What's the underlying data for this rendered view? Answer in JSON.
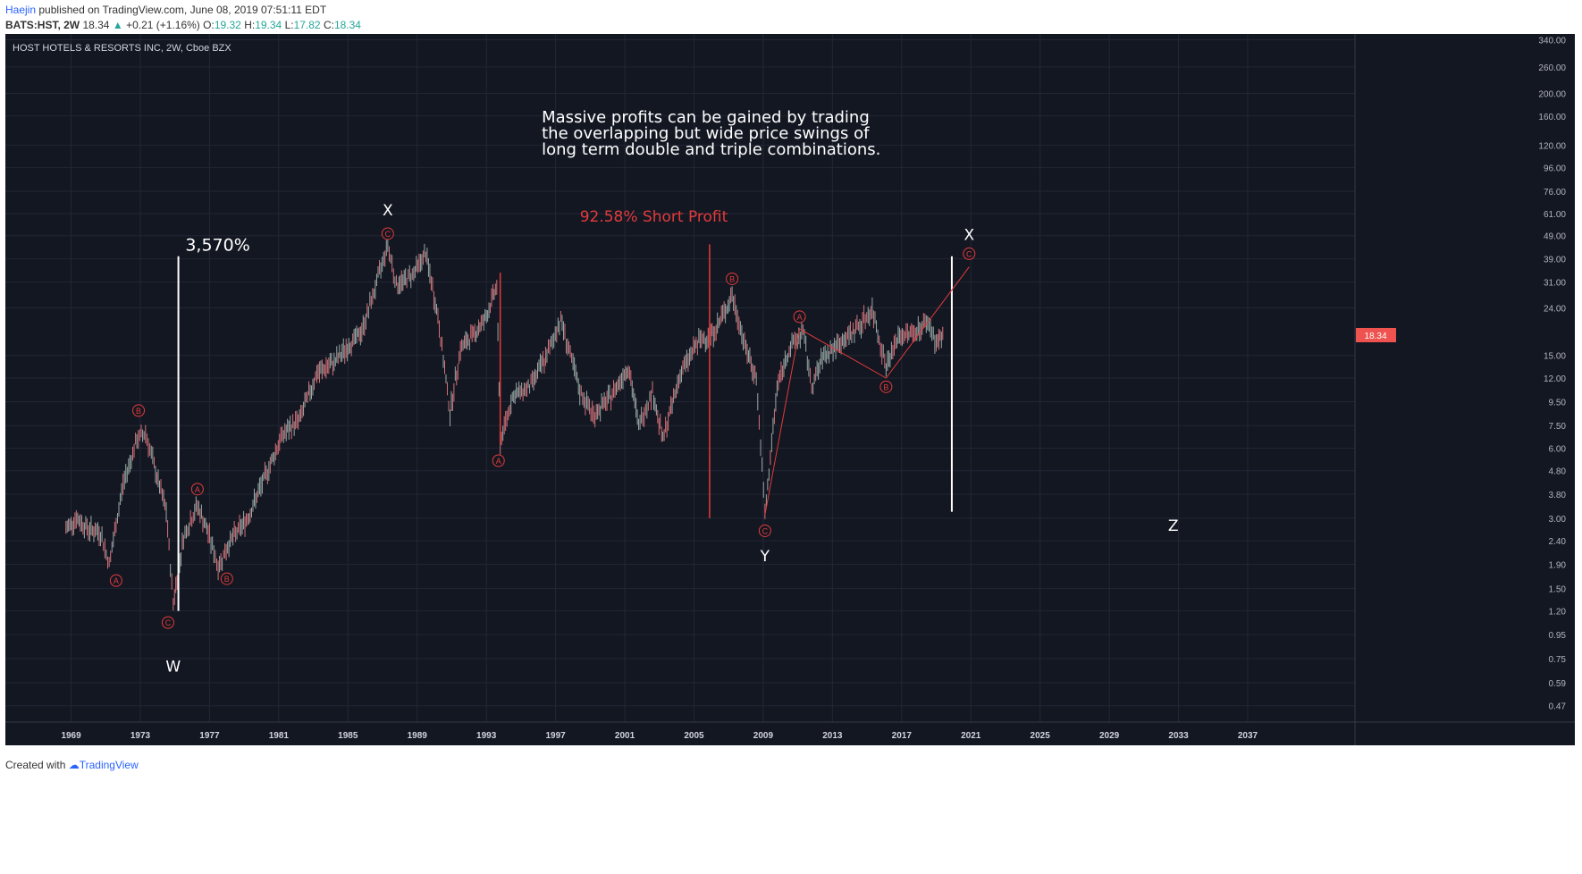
{
  "header": {
    "user": "Haejin",
    "published": "published on TradingView.com, June 08, 2019 07:51:11 EDT",
    "symbol": "BATS:HST, 2W",
    "price": "18.34",
    "change_arrow": "▲",
    "change": "+0.21 (+1.16%)",
    "o_label": "O:",
    "o": "19.32",
    "h_label": "H:",
    "h": "19.34",
    "l_label": "L:",
    "l": "17.82",
    "c_label": "C:",
    "c": "18.34"
  },
  "footer": {
    "created": "Created with",
    "brand": "TradingView"
  },
  "colors": {
    "background": "#131722",
    "grid": "#232735",
    "candle_up": "#9aa9a6",
    "candle_down": "#d4727a",
    "accent_red": "#e23b3b",
    "white": "#ffffff"
  },
  "chart_data": {
    "type": "candlestick",
    "title": "HOST HOTELS & RESORTS INC, 2W, Cboe BZX",
    "y_scale": "log",
    "ylim": [
      0.4,
      360
    ],
    "xlim": [
      1965.2,
      2043.2
    ],
    "x_ticks": [
      "1969",
      "1973",
      "1977",
      "1981",
      "1985",
      "1989",
      "1993",
      "1997",
      "2001",
      "2005",
      "2009",
      "2013",
      "2017",
      "2021",
      "2025",
      "2029",
      "2033",
      "2037"
    ],
    "y_ticks": [
      "340.00",
      "260.00",
      "200.00",
      "160.00",
      "120.00",
      "96.00",
      "76.00",
      "61.00",
      "49.00",
      "39.00",
      "31.00",
      "24.00",
      "15.00",
      "12.00",
      "9.50",
      "7.50",
      "6.00",
      "4.80",
      "3.80",
      "3.00",
      "2.40",
      "1.90",
      "1.50",
      "1.20",
      "0.95",
      "0.75",
      "0.59",
      "0.47"
    ],
    "last_price_label": "18.34",
    "last_price": 18.34,
    "price_path": [
      [
        1968.7,
        2.7
      ],
      [
        1969.3,
        3.0
      ],
      [
        1970.0,
        2.7
      ],
      [
        1970.7,
        2.6
      ],
      [
        1971.2,
        1.9
      ],
      [
        1972.0,
        4.2
      ],
      [
        1972.8,
        6.5
      ],
      [
        1973.3,
        7.0
      ],
      [
        1973.8,
        5.0
      ],
      [
        1974.5,
        3.2
      ],
      [
        1974.9,
        1.3
      ],
      [
        1975.5,
        2.5
      ],
      [
        1976.3,
        3.4
      ],
      [
        1977.0,
        2.5
      ],
      [
        1977.5,
        1.85
      ],
      [
        1978.2,
        2.4
      ],
      [
        1979.2,
        3.0
      ],
      [
        1980.2,
        4.5
      ],
      [
        1981.2,
        6.8
      ],
      [
        1982.2,
        8.0
      ],
      [
        1983.2,
        12.5
      ],
      [
        1984.2,
        14.0
      ],
      [
        1985.2,
        17.0
      ],
      [
        1985.8,
        19.0
      ],
      [
        1986.5,
        28.0
      ],
      [
        1987.3,
        45.0
      ],
      [
        1987.8,
        30.0
      ],
      [
        1988.4,
        32.0
      ],
      [
        1988.8,
        34.0
      ],
      [
        1989.5,
        41.0
      ],
      [
        1990.2,
        22.0
      ],
      [
        1990.9,
        8.5
      ],
      [
        1991.5,
        16.0
      ],
      [
        1992.4,
        19.0
      ],
      [
        1993.0,
        22.0
      ],
      [
        1993.6,
        30.0
      ],
      [
        1993.8,
        6.3
      ],
      [
        1994.5,
        10.0
      ],
      [
        1995.5,
        11.0
      ],
      [
        1996.5,
        15.0
      ],
      [
        1997.3,
        21.5
      ],
      [
        1998.4,
        10.5
      ],
      [
        1999.2,
        8.3
      ],
      [
        2000.2,
        10.0
      ],
      [
        2001.2,
        13.5
      ],
      [
        2001.8,
        7.5
      ],
      [
        2002.6,
        10.5
      ],
      [
        2003.2,
        6.5
      ],
      [
        2004.2,
        12.5
      ],
      [
        2005.2,
        17.0
      ],
      [
        2006.2,
        19.0
      ],
      [
        2007.2,
        27.0
      ],
      [
        2008.0,
        16.0
      ],
      [
        2008.6,
        12.0
      ],
      [
        2009.1,
        3.1
      ],
      [
        2009.8,
        11.0
      ],
      [
        2010.5,
        16.0
      ],
      [
        2011.3,
        19.0
      ],
      [
        2011.8,
        11.0
      ],
      [
        2012.5,
        15.0
      ],
      [
        2013.5,
        17.0
      ],
      [
        2014.5,
        20.0
      ],
      [
        2015.3,
        23.5
      ],
      [
        2016.1,
        13.5
      ],
      [
        2016.8,
        18.0
      ],
      [
        2017.8,
        19.0
      ],
      [
        2018.5,
        21.0
      ],
      [
        2019.0,
        17.0
      ],
      [
        2019.45,
        18.34
      ]
    ],
    "wave_labels": [
      {
        "text": "A",
        "x": 1971.6,
        "y": 1.62
      },
      {
        "text": "B",
        "x": 1972.9,
        "y": 8.7
      },
      {
        "text": "C",
        "x": 1974.6,
        "y": 1.07
      },
      {
        "text": "A",
        "x": 1976.3,
        "y": 4.0
      },
      {
        "text": "B",
        "x": 1978.0,
        "y": 1.65
      },
      {
        "text": "C",
        "x": 1987.3,
        "y": 50.0
      },
      {
        "text": "A",
        "x": 1993.7,
        "y": 5.3
      },
      {
        "text": "B",
        "x": 2007.2,
        "y": 32.0
      },
      {
        "text": "C",
        "x": 2009.1,
        "y": 2.65
      },
      {
        "text": "A",
        "x": 2011.1,
        "y": 22.0
      },
      {
        "text": "B",
        "x": 2016.1,
        "y": 11.0
      },
      {
        "text": "C",
        "x": 2020.9,
        "y": 41.0
      }
    ],
    "wave_letters": [
      {
        "text": "W",
        "x": 1974.9,
        "y": 0.66
      },
      {
        "text": "X",
        "x": 1987.3,
        "y": 60.0
      },
      {
        "text": "Y",
        "x": 2009.1,
        "y": 1.96
      },
      {
        "text": "X",
        "x": 2020.9,
        "y": 47.0
      },
      {
        "text": "Z",
        "x": 2032.7,
        "y": 2.65
      }
    ],
    "annotations": {
      "note_lines": [
        "Massive profits can be gained by trading",
        "the overlapping but wide price swings of",
        "long term double and triple combinations."
      ],
      "pct_gain": "3,570%",
      "short_profit": "92.58% Short Profit"
    },
    "white_bars": [
      {
        "x": 1975.2,
        "y_low": 1.2,
        "y_high": 40.0
      },
      {
        "x": 2019.9,
        "y_low": 3.2,
        "y_high": 40.0
      }
    ],
    "red_bars": [
      {
        "x": 1993.8,
        "y_low": 6.3,
        "y_high": 34.0
      },
      {
        "x": 2005.9,
        "y_low": 3.0,
        "y_high": 45.0
      }
    ],
    "red_wave_path": [
      [
        2009.1,
        3.1
      ],
      [
        2011.1,
        19.5
      ],
      [
        2016.1,
        12.0
      ],
      [
        2020.9,
        36.0
      ]
    ]
  }
}
